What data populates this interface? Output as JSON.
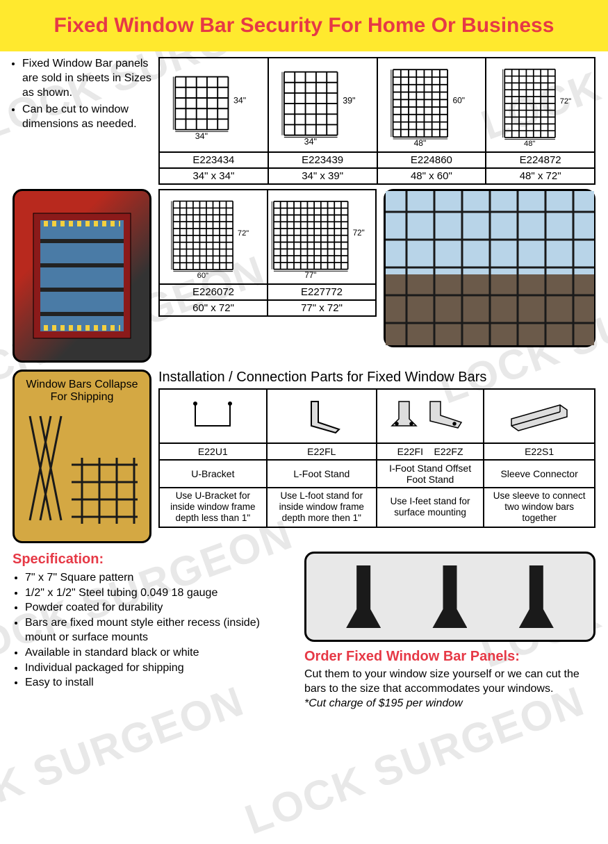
{
  "header": {
    "title": "Fixed Window Bar Security For Home Or Business"
  },
  "intro": {
    "items": [
      "Fixed Window Bar panels are sold in sheets in Sizes as shown.",
      "Can be cut to window dimensions as needed."
    ]
  },
  "sizes_row1": [
    {
      "sku": "E223434",
      "dim": "34\" x 34\"",
      "w": "34\"",
      "h": "34\"",
      "cols": 5,
      "rows": 5,
      "gw": 80,
      "gh": 80
    },
    {
      "sku": "E223439",
      "dim": "34\" x 39\"",
      "w": "34\"",
      "h": "39\"",
      "cols": 5,
      "rows": 6,
      "gw": 80,
      "gh": 95
    },
    {
      "sku": "E224860",
      "dim": "48\" x 60\"",
      "w": "48\"",
      "h": "60\"",
      "cols": 7,
      "rows": 9,
      "gw": 85,
      "gh": 105
    },
    {
      "sku": "E224872",
      "dim": "48\" x 72\"",
      "w": "48\"",
      "h": "72\"",
      "cols": 7,
      "rows": 10,
      "gw": 85,
      "gh": 115
    }
  ],
  "sizes_row2": [
    {
      "sku": "E226072",
      "dim": "60\" x 72\"",
      "w": "60\"",
      "h": "72\"",
      "cols": 9,
      "rows": 10,
      "gw": 100,
      "gh": 115
    },
    {
      "sku": "E227772",
      "dim": "77\" x 72\"",
      "w": "77\"",
      "h": "72\"",
      "cols": 11,
      "rows": 10,
      "gw": 120,
      "gh": 110
    }
  ],
  "collapse_label": "Window Bars Collapse For Shipping",
  "parts_title": "Installation / Connection Parts for Fixed Window Bars",
  "parts": [
    {
      "sku": "E22U1",
      "name": "U-Bracket",
      "desc": "Use U-Bracket for inside window frame depth less than 1\""
    },
    {
      "sku": "E22FL",
      "name": "L-Foot Stand",
      "desc": "Use L-foot stand for inside window frame depth more then 1\""
    },
    {
      "sku": "E22FI    E22FZ",
      "name": "I-Foot Stand Offset Foot Stand",
      "desc": "Use I-feet stand for surface mounting"
    },
    {
      "sku": "E22S1",
      "name": "Sleeve Connector",
      "desc": "Use sleeve to connect two window bars together"
    }
  ],
  "spec": {
    "title": "Specification:",
    "items": [
      "7\" x 7\" Square pattern",
      "1/2\" x 1/2\" Steel tubing 0.049  18 gauge",
      "Powder coated for durability",
      "Bars are fixed mount style either recess (inside) mount or surface mounts",
      "Available in standard black or white",
      "Individual packaged for shipping",
      "Easy to install"
    ]
  },
  "order": {
    "title": "Order Fixed Window Bar Panels:",
    "body": "Cut them to your window size yourself or we can cut the bars to the size that accommodates your windows.",
    "note": "*Cut charge of $195 per window"
  },
  "colors": {
    "header_bg": "#ffe92e",
    "red": "#e63946",
    "border": "#000000"
  },
  "watermark_text": "LOCK SURGEON"
}
